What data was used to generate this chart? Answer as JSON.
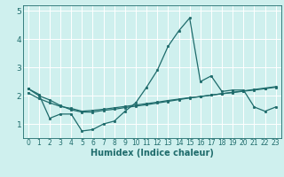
{
  "xlabel": "Humidex (Indice chaleur)",
  "xlim": [
    -0.5,
    23.5
  ],
  "ylim": [
    0.5,
    5.2
  ],
  "yticks": [
    1,
    2,
    3,
    4,
    5
  ],
  "xticks": [
    0,
    1,
    2,
    3,
    4,
    5,
    6,
    7,
    8,
    9,
    10,
    11,
    12,
    13,
    14,
    15,
    16,
    17,
    18,
    19,
    20,
    21,
    22,
    23
  ],
  "bg_color": "#cff0ee",
  "line_color": "#1e6b6b",
  "grid_color": "#ffffff",
  "series1_x": [
    0,
    1,
    2,
    3,
    4,
    5,
    6,
    7,
    8,
    9,
    10,
    11,
    12,
    13,
    14,
    15,
    16,
    17,
    18,
    19,
    20,
    21,
    22,
    23
  ],
  "series1_y": [
    2.25,
    2.05,
    1.2,
    1.35,
    1.35,
    0.75,
    0.8,
    1.0,
    1.1,
    1.45,
    1.75,
    2.3,
    2.9,
    3.75,
    4.3,
    4.75,
    2.5,
    2.7,
    2.15,
    2.2,
    2.2,
    1.6,
    1.45,
    1.6
  ],
  "series2_x": [
    0,
    1,
    2,
    3,
    4,
    5,
    6,
    7,
    8,
    9,
    10,
    11,
    12,
    13,
    14,
    15,
    16,
    17,
    18,
    19,
    20,
    21,
    22,
    23
  ],
  "series2_y": [
    2.25,
    2.0,
    1.85,
    1.65,
    1.5,
    1.42,
    1.42,
    1.48,
    1.52,
    1.58,
    1.63,
    1.68,
    1.74,
    1.8,
    1.86,
    1.92,
    1.97,
    2.02,
    2.07,
    2.12,
    2.17,
    2.22,
    2.27,
    2.32
  ],
  "series3_x": [
    0,
    1,
    2,
    3,
    4,
    5,
    6,
    7,
    8,
    9,
    10,
    11,
    12,
    13,
    14,
    15,
    16,
    17,
    18,
    19,
    20,
    21,
    22,
    23
  ],
  "series3_y": [
    2.1,
    1.9,
    1.75,
    1.62,
    1.55,
    1.45,
    1.48,
    1.52,
    1.57,
    1.62,
    1.67,
    1.72,
    1.77,
    1.83,
    1.88,
    1.93,
    1.97,
    2.02,
    2.07,
    2.11,
    2.16,
    2.2,
    2.25,
    2.3
  ]
}
